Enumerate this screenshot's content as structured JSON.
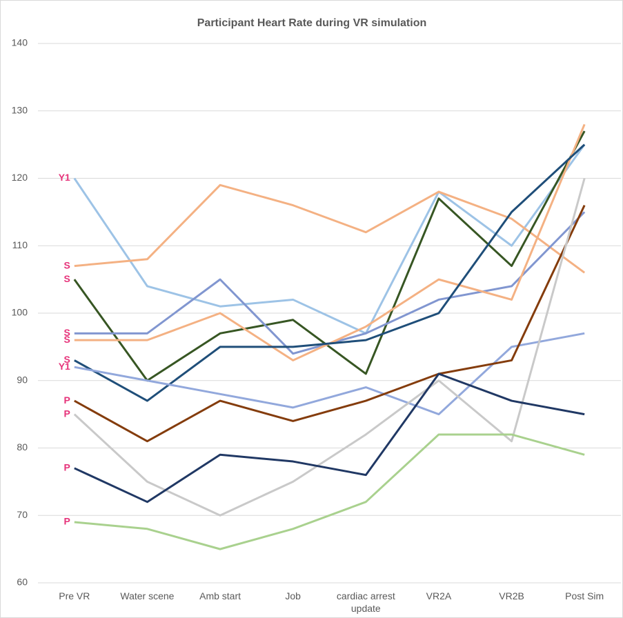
{
  "chart_data": {
    "type": "line",
    "title": "Participant Heart Rate during VR simulation",
    "categories": [
      "Pre VR",
      "Water scene",
      "Amb start",
      "Job",
      "cardiac arrest update",
      "VR2A",
      "VR2B",
      "Post Sim"
    ],
    "series": [
      {
        "name": "Y1",
        "color": "#9dc3e6",
        "values": [
          120,
          104,
          101,
          102,
          97,
          118,
          110,
          125
        ]
      },
      {
        "name": "S",
        "color": "#f4b183",
        "values": [
          107,
          108,
          119,
          116,
          112,
          118,
          114,
          106
        ]
      },
      {
        "name": "S",
        "color": "#375623",
        "values": [
          105,
          90,
          97,
          99,
          91,
          117,
          107,
          127
        ]
      },
      {
        "name": "S",
        "color": "#8196d0",
        "values": [
          97,
          97,
          105,
          94,
          97,
          102,
          104,
          115
        ]
      },
      {
        "name": "S",
        "color": "#f4b183",
        "values": [
          96,
          96,
          100,
          93,
          98,
          105,
          102,
          128
        ]
      },
      {
        "name": "S",
        "color": "#1f4e79",
        "values": [
          93,
          87,
          95,
          95,
          96,
          100,
          115,
          125
        ]
      },
      {
        "name": "Y1",
        "color": "#92a8dc",
        "values": [
          92,
          90,
          88,
          86,
          89,
          85,
          95,
          97
        ]
      },
      {
        "name": "P",
        "color": "#843c0c",
        "values": [
          87,
          81,
          87,
          84,
          87,
          91,
          93,
          116
        ]
      },
      {
        "name": "P",
        "color": "#c9c9c9",
        "values": [
          85,
          75,
          70,
          75,
          82,
          90,
          81,
          120
        ]
      },
      {
        "name": "P",
        "color": "#203864",
        "values": [
          77,
          72,
          79,
          78,
          76,
          91,
          87,
          85
        ]
      },
      {
        "name": "P",
        "color": "#a9d18e",
        "values": [
          69,
          68,
          65,
          68,
          72,
          82,
          82,
          79
        ]
      }
    ],
    "ylim": [
      60,
      140
    ],
    "yticks": [
      60,
      70,
      80,
      90,
      100,
      110,
      120,
      130,
      140
    ],
    "grid": true
  }
}
